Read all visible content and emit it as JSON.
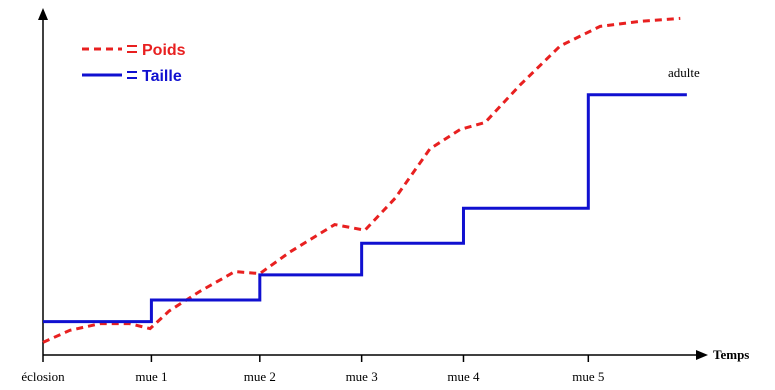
{
  "chart_data": {
    "type": "line",
    "xlabel": "Temps",
    "annotation": "adulte",
    "xlim": [
      0,
      100
    ],
    "ylim": [
      0,
      104
    ],
    "xticks": [
      {
        "value": 0,
        "label": "éclosion"
      },
      {
        "value": 16.5,
        "label": "mue 1"
      },
      {
        "value": 33,
        "label": "mue 2"
      },
      {
        "value": 48.5,
        "label": "mue 3"
      },
      {
        "value": 64,
        "label": "mue 4"
      },
      {
        "value": 83,
        "label": "mue 5"
      }
    ],
    "series": [
      {
        "name": "Poids",
        "color": "#e82020",
        "dashed": true,
        "x": [
          0,
          4.1,
          8.7,
          13.2,
          16.3,
          19.2,
          23.9,
          29.2,
          33,
          37.6,
          44.4,
          49,
          53.6,
          58.9,
          63.5,
          67.3,
          72.6,
          78.7,
          84.8,
          90.9,
          97
        ],
        "values": [
          3.8,
          7.4,
          9.4,
          9.4,
          7.9,
          13.2,
          19.1,
          25,
          24.4,
          30.9,
          39.1,
          37.4,
          47,
          61.8,
          67.6,
          69.7,
          80.9,
          92.6,
          98.5,
          100,
          100.9
        ]
      },
      {
        "name": "Taille",
        "color": "#1010d0",
        "dashed": false,
        "x": [
          0,
          16.5,
          16.5,
          33,
          33,
          48.5,
          48.5,
          64,
          64,
          83,
          83,
          98
        ],
        "values": [
          10,
          10,
          16.5,
          16.5,
          24,
          24,
          33.5,
          33.5,
          44,
          44,
          78,
          78
        ]
      }
    ]
  }
}
